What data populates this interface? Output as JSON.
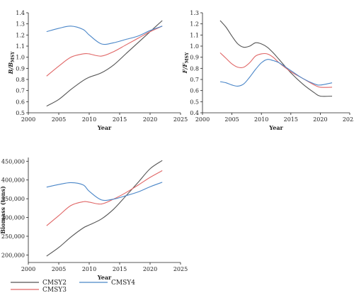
{
  "legend": [
    {
      "name": "CMSY2",
      "color": "#555555"
    },
    {
      "name": "CMSY3",
      "color": "#e06666"
    },
    {
      "name": "CMSY4",
      "color": "#4a86c8"
    }
  ],
  "chart_data": [
    {
      "type": "line",
      "xlabel": "Year",
      "ylabel": "B/B",
      "ylabel_sub": "MSY",
      "xlim": [
        2000,
        2025
      ],
      "ylim": [
        0.5,
        1.4
      ],
      "xticks": [
        "2000",
        "2005",
        "2010",
        "2015",
        "2020",
        "2025"
      ],
      "yticks": [
        "0.5",
        "0.6",
        "0.7",
        "0.8",
        "0.9",
        "1.0",
        "1.1",
        "1.2",
        "1.3",
        "1.4"
      ],
      "x": [
        2003,
        2005,
        2007,
        2009,
        2010,
        2012,
        2014,
        2016,
        2018,
        2020,
        2022
      ],
      "series": [
        {
          "name": "CMSY2",
          "values": [
            0.56,
            0.62,
            0.71,
            0.79,
            0.82,
            0.86,
            0.93,
            1.03,
            1.13,
            1.23,
            1.33
          ]
        },
        {
          "name": "CMSY3",
          "values": [
            0.83,
            0.92,
            1.0,
            1.03,
            1.03,
            1.01,
            1.05,
            1.11,
            1.17,
            1.23,
            1.28
          ]
        },
        {
          "name": "CMSY4",
          "values": [
            1.23,
            1.26,
            1.28,
            1.25,
            1.2,
            1.12,
            1.13,
            1.16,
            1.19,
            1.24,
            1.28
          ]
        }
      ]
    },
    {
      "type": "line",
      "xlabel": "Year",
      "ylabel": "F/F",
      "ylabel_sub": "MSY",
      "xlim": [
        2000,
        2025
      ],
      "ylim": [
        0.4,
        1.3
      ],
      "xticks": [
        "2000",
        "2005",
        "2010",
        "2015",
        "2020",
        "2025"
      ],
      "yticks": [
        "0.4",
        "0.5",
        "0.6",
        "0.7",
        "0.8",
        "0.9",
        "1.0",
        "1.1",
        "1.2",
        "1.3"
      ],
      "x": [
        2003,
        2004,
        2005,
        2006,
        2007,
        2008,
        2009,
        2010,
        2011,
        2012,
        2013,
        2015,
        2017,
        2019,
        2020,
        2022
      ],
      "series": [
        {
          "name": "CMSY2",
          "values": [
            1.23,
            1.17,
            1.09,
            1.02,
            0.99,
            1.0,
            1.03,
            1.02,
            0.99,
            0.94,
            0.88,
            0.76,
            0.66,
            0.58,
            0.55,
            0.55
          ]
        },
        {
          "name": "CMSY3",
          "values": [
            0.94,
            0.89,
            0.84,
            0.81,
            0.81,
            0.85,
            0.91,
            0.93,
            0.93,
            0.9,
            0.85,
            0.77,
            0.71,
            0.65,
            0.63,
            0.63
          ]
        },
        {
          "name": "CMSY4",
          "values": [
            0.68,
            0.67,
            0.65,
            0.64,
            0.66,
            0.72,
            0.79,
            0.85,
            0.88,
            0.87,
            0.85,
            0.78,
            0.71,
            0.66,
            0.65,
            0.67
          ]
        }
      ]
    },
    {
      "type": "line",
      "xlabel": "Year",
      "ylabel": "Biomass (tons)",
      "xlim": [
        2000,
        2025
      ],
      "ylim": [
        180000,
        460000
      ],
      "yticks_values": [
        200000,
        250000,
        300000,
        350000,
        400000,
        450000
      ],
      "xticks": [
        "2000",
        "2005",
        "2010",
        "2015",
        "2020",
        "2025"
      ],
      "yticks": [
        "200,000",
        "250,000",
        "300,000",
        "350,000",
        "400,000",
        "450,000"
      ],
      "x": [
        2003,
        2005,
        2007,
        2009,
        2010,
        2012,
        2014,
        2016,
        2018,
        2020,
        2022
      ],
      "series": [
        {
          "name": "CMSY2",
          "values": [
            197000,
            220000,
            248000,
            272000,
            280000,
            296000,
            322000,
            357000,
            393000,
            430000,
            452000
          ]
        },
        {
          "name": "CMSY3",
          "values": [
            278000,
            305000,
            332000,
            342000,
            341000,
            336000,
            349000,
            366000,
            386000,
            407000,
            425000
          ]
        },
        {
          "name": "CMSY4",
          "values": [
            381000,
            388000,
            393000,
            387000,
            370000,
            347000,
            349000,
            358000,
            368000,
            382000,
            394000
          ]
        }
      ]
    }
  ]
}
